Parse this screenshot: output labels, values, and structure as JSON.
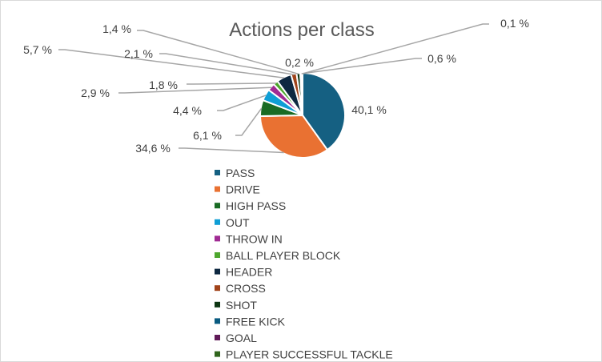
{
  "chart_data": {
    "type": "pie",
    "title": "Actions per class",
    "legend_position": "bottom",
    "categories": [
      "PASS",
      "DRIVE",
      "HIGH PASS",
      "OUT",
      "THROW IN",
      "BALL PLAYER BLOCK",
      "HEADER",
      "CROSS",
      "SHOT",
      "FREE KICK",
      "GOAL",
      "PLAYER SUCCESSFUL TACKLE"
    ],
    "values": [
      40.1,
      34.6,
      6.1,
      4.4,
      2.9,
      1.8,
      5.7,
      2.1,
      1.4,
      0.2,
      0.6,
      0.1
    ],
    "data_labels": [
      "40,1 %",
      "34,6 %",
      "6,1 %",
      "4,4 %",
      "2,9 %",
      "1,8 %",
      "5,7 %",
      "2,1 %",
      "1,4 %",
      "0,2 %",
      "0,6 %",
      "0,1 %"
    ],
    "colors": [
      "#156082",
      "#e97132",
      "#196b24",
      "#0f9ed5",
      "#a02b93",
      "#4ea72e",
      "#0e2841",
      "#a1431a",
      "#0d3512",
      "#095b80",
      "#601a58",
      "#30651c"
    ]
  }
}
